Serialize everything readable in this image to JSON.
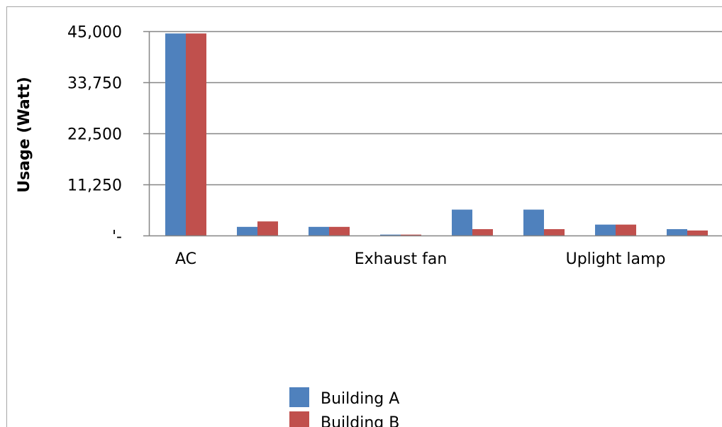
{
  "chart_data": {
    "type": "bar",
    "title": "",
    "xlabel": "",
    "ylabel": "Usage (Watt)",
    "ylim": [
      0,
      45000
    ],
    "y_ticks": [
      0,
      11250,
      22500,
      33750,
      45000
    ],
    "y_tick_labels": [
      "'-",
      "11,250",
      "22,500",
      "33,750",
      "45,000"
    ],
    "categories": [
      "AC",
      "",
      "",
      "Exhaust fan",
      "",
      "",
      "Uplight lamp",
      ""
    ],
    "visible_category_labels": [
      {
        "index": 0,
        "text": "AC"
      },
      {
        "index": 3,
        "text": "Exhaust fan"
      },
      {
        "index": 6,
        "text": "Uplight lamp"
      }
    ],
    "series": [
      {
        "name": "Building A",
        "color": "#4F81BD",
        "values": [
          44500,
          1900,
          1900,
          200,
          5700,
          5700,
          2400,
          1400
        ]
      },
      {
        "name": "Building B",
        "color": "#C0504D",
        "values": [
          44500,
          3100,
          1900,
          200,
          1400,
          1400,
          2400,
          1100
        ]
      }
    ],
    "grid": true,
    "legend": "bottom"
  }
}
